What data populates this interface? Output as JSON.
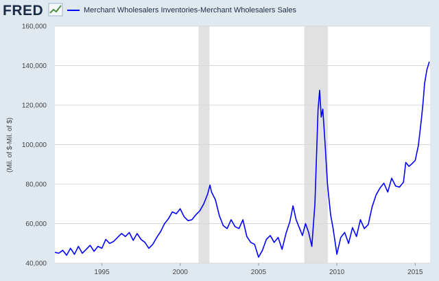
{
  "header": {
    "logo_text": "FRED",
    "legend_label": "Merchant Wholesalers Inventories-Merchant Wholesalers Sales"
  },
  "colors": {
    "series": "#0000ff",
    "recession": "#e1e1e1",
    "plot_bg": "#ffffff",
    "page_bg": "#e1e9f0",
    "grid": "#d8d8d8"
  },
  "chart_data": {
    "type": "line",
    "title": "",
    "xlabel": "",
    "ylabel": "(Mil. of $-Mil. of $)",
    "xlim": [
      1992.0,
      2015.95
    ],
    "ylim": [
      40000,
      160000
    ],
    "grid": true,
    "legend": "top-left",
    "x_ticks": [
      1995,
      2000,
      2005,
      2010,
      2015
    ],
    "x_tick_labels": [
      "1995",
      "2000",
      "2005",
      "2010",
      "2015"
    ],
    "y_ticks": [
      40000,
      60000,
      80000,
      100000,
      120000,
      140000,
      160000
    ],
    "y_tick_labels": [
      "40,000",
      "60,000",
      "80,000",
      "100,000",
      "120,000",
      "140,000",
      "160,000"
    ],
    "recessions": [
      [
        2001.17,
        2001.87
      ],
      [
        2007.92,
        2009.42
      ]
    ],
    "series": [
      {
        "name": "Merchant Wholesalers Inventories-Merchant Wholesalers Sales",
        "points": [
          [
            1992.0,
            45500
          ],
          [
            1992.25,
            45000
          ],
          [
            1992.5,
            46500
          ],
          [
            1992.75,
            44000
          ],
          [
            1993.0,
            47500
          ],
          [
            1993.25,
            44500
          ],
          [
            1993.5,
            48500
          ],
          [
            1993.75,
            45000
          ],
          [
            1994.0,
            47000
          ],
          [
            1994.25,
            49000
          ],
          [
            1994.5,
            46000
          ],
          [
            1994.75,
            48500
          ],
          [
            1995.0,
            47500
          ],
          [
            1995.25,
            52000
          ],
          [
            1995.5,
            50000
          ],
          [
            1995.75,
            51000
          ],
          [
            1996.0,
            53000
          ],
          [
            1996.25,
            55000
          ],
          [
            1996.5,
            53500
          ],
          [
            1996.75,
            55500
          ],
          [
            1997.0,
            51500
          ],
          [
            1997.25,
            55000
          ],
          [
            1997.5,
            52000
          ],
          [
            1997.75,
            50500
          ],
          [
            1998.0,
            47500
          ],
          [
            1998.25,
            49500
          ],
          [
            1998.5,
            53000
          ],
          [
            1998.75,
            56000
          ],
          [
            1999.0,
            60000
          ],
          [
            1999.25,
            62500
          ],
          [
            1999.5,
            66000
          ],
          [
            1999.75,
            65000
          ],
          [
            2000.0,
            67500
          ],
          [
            2000.25,
            63500
          ],
          [
            2000.5,
            61500
          ],
          [
            2000.75,
            62000
          ],
          [
            2001.0,
            64500
          ],
          [
            2001.25,
            66500
          ],
          [
            2001.5,
            70000
          ],
          [
            2001.75,
            75000
          ],
          [
            2001.9,
            79500
          ],
          [
            2002.0,
            76000
          ],
          [
            2002.25,
            72000
          ],
          [
            2002.5,
            64000
          ],
          [
            2002.75,
            59000
          ],
          [
            2003.0,
            57500
          ],
          [
            2003.25,
            62000
          ],
          [
            2003.5,
            58500
          ],
          [
            2003.75,
            57500
          ],
          [
            2004.0,
            62000
          ],
          [
            2004.25,
            53500
          ],
          [
            2004.5,
            50500
          ],
          [
            2004.75,
            49500
          ],
          [
            2005.0,
            43000
          ],
          [
            2005.25,
            46500
          ],
          [
            2005.5,
            52000
          ],
          [
            2005.75,
            54000
          ],
          [
            2006.0,
            50500
          ],
          [
            2006.25,
            53000
          ],
          [
            2006.5,
            47000
          ],
          [
            2006.75,
            55000
          ],
          [
            2007.0,
            61000
          ],
          [
            2007.2,
            69000
          ],
          [
            2007.4,
            62000
          ],
          [
            2007.6,
            58000
          ],
          [
            2007.8,
            54000
          ],
          [
            2008.0,
            60000
          ],
          [
            2008.2,
            55500
          ],
          [
            2008.4,
            48500
          ],
          [
            2008.6,
            70000
          ],
          [
            2008.8,
            118000
          ],
          [
            2008.9,
            127500
          ],
          [
            2009.0,
            114000
          ],
          [
            2009.1,
            118000
          ],
          [
            2009.25,
            100000
          ],
          [
            2009.4,
            80000
          ],
          [
            2009.6,
            64500
          ],
          [
            2009.75,
            58000
          ],
          [
            2009.9,
            50000
          ],
          [
            2010.0,
            44500
          ],
          [
            2010.25,
            53000
          ],
          [
            2010.5,
            55500
          ],
          [
            2010.75,
            50000
          ],
          [
            2011.0,
            58000
          ],
          [
            2011.25,
            53500
          ],
          [
            2011.5,
            62000
          ],
          [
            2011.75,
            57500
          ],
          [
            2012.0,
            59500
          ],
          [
            2012.25,
            68500
          ],
          [
            2012.5,
            74500
          ],
          [
            2012.75,
            78000
          ],
          [
            2013.0,
            80500
          ],
          [
            2013.25,
            76000
          ],
          [
            2013.5,
            83000
          ],
          [
            2013.75,
            79000
          ],
          [
            2014.0,
            78500
          ],
          [
            2014.25,
            81000
          ],
          [
            2014.4,
            91000
          ],
          [
            2014.6,
            89000
          ],
          [
            2014.75,
            90000
          ],
          [
            2015.0,
            92000
          ],
          [
            2015.2,
            99500
          ],
          [
            2015.4,
            113000
          ],
          [
            2015.5,
            121000
          ],
          [
            2015.6,
            131000
          ],
          [
            2015.75,
            138000
          ],
          [
            2015.9,
            142000
          ]
        ]
      }
    ]
  }
}
